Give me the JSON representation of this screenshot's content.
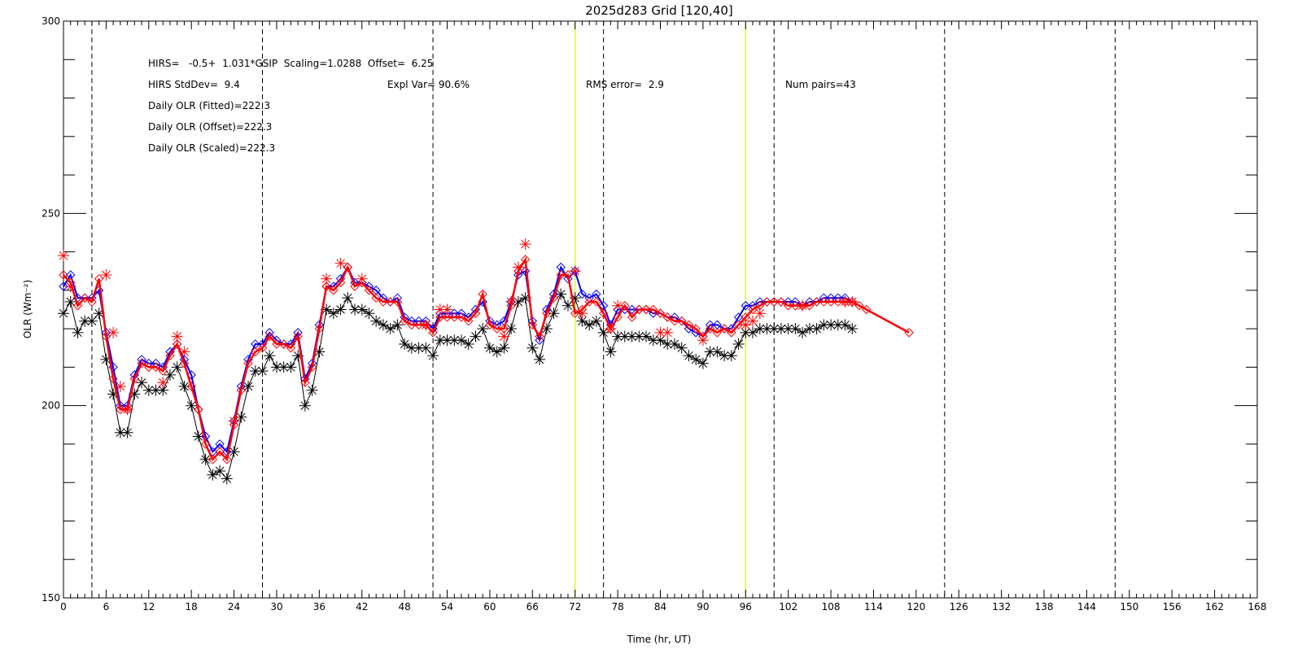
{
  "chart_data": {
    "type": "line",
    "title": "2025d283 Grid [120,40]",
    "xlabel": "Time (hr, UT)",
    "ylabel": "OLR (Wm⁻²)",
    "xlim": [
      0,
      168
    ],
    "ylim": [
      150,
      300
    ],
    "x_tick_step": 6,
    "y_major_ticks": [
      150,
      200,
      250,
      300
    ],
    "y_minor_step": 10,
    "grid": false,
    "dashed_vlines": [
      4,
      28,
      52,
      76,
      100,
      124,
      148
    ],
    "yellow_vlines": [
      72,
      96
    ],
    "colors": {
      "hirs_line": "#000000",
      "fitted_line": "#0000ff",
      "scaled_line": "#ff0000",
      "yellow_marker": "#ccff33"
    },
    "annotations": {
      "regression": "HIRS=   -0.5+  1.031*GSIP  Scaling=1.0288  Offset=  6.25",
      "stddev": "HIRS StdDev=  9.4",
      "explvar": "Expl Var= 90.6%",
      "rms": "RMS error=  2.9",
      "numpairs": "Num pairs=43",
      "daily_fitted": "Daily OLR (Fitted)=222.3",
      "daily_offset": "Daily OLR (Offset)=222.3",
      "daily_scaled": "Daily OLR (Scaled)=222.3"
    },
    "series": [
      {
        "name": "hirs-black-stars",
        "marker": "asterisk",
        "x": [
          0,
          1,
          2,
          3,
          4,
          5,
          6,
          7,
          8,
          9,
          10,
          11,
          12,
          13,
          14,
          15,
          16,
          17,
          18,
          19,
          20,
          21,
          22,
          23,
          24,
          25,
          26,
          27,
          28,
          29,
          30,
          31,
          32,
          33,
          34,
          35,
          36,
          37,
          38,
          39,
          40,
          41,
          42,
          43,
          44,
          45,
          46,
          47,
          48,
          49,
          50,
          51,
          52,
          53,
          54,
          55,
          56,
          57,
          58,
          59,
          60,
          61,
          62,
          63,
          64,
          65,
          66,
          67,
          68,
          69,
          70,
          71,
          72,
          73,
          74,
          75,
          76,
          77,
          78,
          79,
          80,
          81,
          82,
          83,
          84,
          85,
          86,
          87,
          88,
          89,
          90,
          91,
          92,
          93,
          94,
          95,
          96,
          97,
          98,
          99,
          100,
          101,
          102,
          103,
          104,
          105,
          106,
          107,
          108,
          109,
          110,
          111
        ],
        "y": [
          224,
          227,
          219,
          222,
          222,
          224,
          212,
          203,
          193,
          193,
          203,
          206,
          204,
          204,
          204,
          208,
          210,
          205,
          200,
          192,
          186,
          182,
          183,
          181,
          188,
          197,
          205,
          209,
          209,
          213,
          210,
          210,
          210,
          213,
          200,
          204,
          214,
          225,
          224,
          225,
          228,
          225,
          225,
          224,
          222,
          221,
          220,
          221,
          216,
          215,
          215,
          215,
          213,
          217,
          217,
          217,
          217,
          216,
          218,
          220,
          215,
          214,
          215,
          220,
          227,
          228,
          215,
          212,
          220,
          224,
          229,
          226,
          228,
          222,
          221,
          222,
          219,
          214,
          218,
          218,
          218,
          218,
          218,
          217,
          217,
          216,
          216,
          215,
          213,
          212,
          211,
          214,
          214,
          213,
          213,
          216,
          219,
          219,
          220,
          220,
          220,
          220,
          220,
          220,
          219,
          220,
          220,
          221,
          221,
          221,
          221,
          220
        ]
      },
      {
        "name": "fitted-blue-diamonds",
        "marker": "diamond",
        "x": [
          0,
          1,
          2,
          3,
          4,
          5,
          6,
          7,
          8,
          9,
          10,
          11,
          12,
          13,
          14,
          15,
          16,
          17,
          18,
          19,
          20,
          21,
          22,
          23,
          24,
          25,
          26,
          27,
          28,
          29,
          30,
          31,
          32,
          33,
          34,
          35,
          36,
          37,
          38,
          39,
          40,
          41,
          42,
          43,
          44,
          45,
          46,
          47,
          48,
          49,
          50,
          51,
          52,
          53,
          54,
          55,
          56,
          57,
          58,
          59,
          60,
          61,
          62,
          63,
          64,
          65,
          66,
          67,
          68,
          69,
          70,
          71,
          72,
          73,
          74,
          75,
          76,
          77,
          78,
          79,
          80,
          81,
          82,
          83,
          84,
          85,
          86,
          87,
          88,
          89,
          90,
          91,
          92,
          93,
          94,
          95,
          96,
          97,
          98,
          99,
          100,
          101,
          102,
          103,
          104,
          105,
          106,
          107,
          108,
          109,
          110,
          111
        ],
        "y": [
          231,
          234,
          228,
          228,
          228,
          230,
          219,
          210,
          200,
          200,
          208,
          212,
          211,
          211,
          210,
          214,
          216,
          212,
          208,
          199,
          192,
          188,
          190,
          188,
          196,
          205,
          212,
          216,
          216,
          219,
          217,
          216,
          216,
          219,
          207,
          211,
          221,
          231,
          231,
          233,
          236,
          232,
          232,
          231,
          230,
          228,
          227,
          228,
          223,
          222,
          222,
          222,
          220,
          224,
          224,
          224,
          224,
          223,
          225,
          227,
          222,
          221,
          222,
          227,
          234,
          235,
          222,
          217,
          225,
          229,
          236,
          233,
          235,
          229,
          228,
          229,
          226,
          221,
          225,
          225,
          225,
          225,
          225,
          224,
          224,
          223,
          223,
          222,
          220,
          219,
          218,
          221,
          221,
          220,
          220,
          223,
          226,
          226,
          227,
          227,
          227,
          227,
          227,
          227,
          226,
          227,
          227,
          228,
          228,
          228,
          228,
          227
        ]
      },
      {
        "name": "scaled-red-line",
        "marker": "diamond",
        "x": [
          0,
          1,
          2,
          3,
          4,
          5,
          6,
          7,
          8,
          9,
          10,
          11,
          12,
          13,
          14,
          15,
          16,
          17,
          18,
          19,
          20,
          21,
          22,
          23,
          24,
          25,
          26,
          27,
          28,
          29,
          30,
          31,
          32,
          33,
          34,
          35,
          36,
          37,
          38,
          39,
          40,
          41,
          42,
          43,
          44,
          45,
          46,
          47,
          48,
          49,
          50,
          51,
          52,
          53,
          54,
          55,
          56,
          57,
          58,
          59,
          60,
          61,
          62,
          63,
          64,
          65,
          66,
          67,
          68,
          69,
          70,
          71,
          72,
          73,
          74,
          75,
          76,
          77,
          78,
          79,
          80,
          81,
          82,
          83,
          84,
          85,
          86,
          87,
          88,
          89,
          90,
          91,
          92,
          93,
          94,
          95,
          96,
          97,
          98,
          99,
          100,
          101,
          102,
          103,
          104,
          105,
          106,
          107,
          108,
          109,
          110,
          111,
          112,
          113,
          119
        ],
        "y": [
          234,
          232,
          226,
          228,
          227,
          233,
          218,
          207,
          199,
          199,
          207,
          211,
          210,
          210,
          209,
          213,
          216,
          211,
          205,
          199,
          190,
          186,
          188,
          186,
          195,
          204,
          211,
          214,
          215,
          218,
          216,
          216,
          215,
          218,
          206,
          210,
          220,
          231,
          230,
          232,
          236,
          231,
          232,
          230,
          228,
          227,
          227,
          227,
          222,
          221,
          221,
          221,
          219,
          223,
          223,
          223,
          223,
          222,
          224,
          229,
          221,
          220,
          220,
          226,
          235,
          238,
          221,
          218,
          224,
          228,
          234,
          234,
          224,
          225,
          227,
          227,
          224,
          220,
          223,
          226,
          223,
          225,
          225,
          225,
          224,
          223,
          222,
          222,
          221,
          220,
          218,
          220,
          219,
          220,
          219,
          221,
          223,
          225,
          226,
          227,
          227,
          227,
          226,
          226,
          226,
          226,
          227,
          227,
          227,
          227,
          227,
          227,
          226,
          225,
          219
        ]
      },
      {
        "name": "offset-red-stars",
        "marker": "asterisk",
        "x": [
          0,
          1,
          6,
          7,
          8,
          9,
          14,
          16,
          17,
          24,
          37,
          39,
          42,
          51,
          53,
          54,
          62,
          63,
          64,
          65,
          72,
          73,
          77,
          78,
          84,
          85,
          90,
          96,
          97,
          98,
          104,
          110,
          111
        ],
        "y": [
          239,
          231,
          234,
          219,
          205,
          199,
          206,
          218,
          214,
          196,
          233,
          237,
          233,
          221,
          225,
          225,
          218,
          227,
          236,
          242,
          235,
          224,
          220,
          226,
          219,
          219,
          217,
          221,
          222,
          224,
          226,
          227,
          227
        ]
      }
    ]
  }
}
